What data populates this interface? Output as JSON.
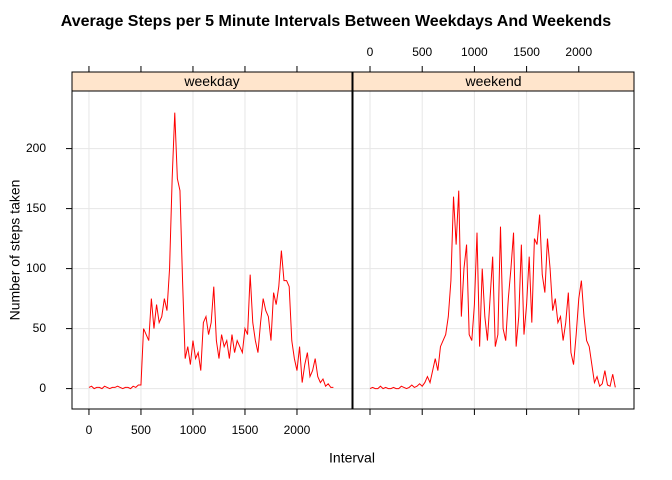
{
  "chart_data": {
    "type": "line",
    "title": "Average Steps per 5 Minute Intervals Between Weekdays And Weekends",
    "xlabel": "Interval",
    "ylabel": "Number of steps taken",
    "x": [
      0,
      25,
      50,
      75,
      100,
      125,
      150,
      175,
      200,
      225,
      250,
      275,
      300,
      325,
      350,
      375,
      400,
      425,
      450,
      475,
      500,
      525,
      550,
      575,
      600,
      625,
      650,
      675,
      700,
      725,
      750,
      775,
      800,
      825,
      850,
      875,
      900,
      925,
      950,
      975,
      1000,
      1025,
      1050,
      1075,
      1100,
      1125,
      1150,
      1175,
      1200,
      1225,
      1250,
      1275,
      1300,
      1325,
      1350,
      1375,
      1400,
      1425,
      1450,
      1475,
      1500,
      1525,
      1550,
      1575,
      1600,
      1625,
      1650,
      1675,
      1700,
      1725,
      1750,
      1775,
      1800,
      1825,
      1850,
      1875,
      1900,
      1925,
      1950,
      1975,
      2000,
      2025,
      2050,
      2075,
      2100,
      2125,
      2150,
      2175,
      2200,
      2225,
      2250,
      2275,
      2300,
      2325,
      2350
    ],
    "series": [
      {
        "name": "weekday",
        "color": "#ff0000",
        "values": [
          1,
          2,
          0,
          1,
          1,
          0,
          2,
          1,
          0,
          1,
          1,
          2,
          1,
          0,
          1,
          1,
          0,
          2,
          1,
          3,
          3,
          50,
          45,
          40,
          75,
          50,
          70,
          55,
          60,
          75,
          65,
          100,
          175,
          230,
          175,
          165,
          90,
          25,
          35,
          20,
          40,
          25,
          30,
          15,
          55,
          60,
          45,
          55,
          85,
          40,
          25,
          45,
          35,
          40,
          25,
          45,
          30,
          40,
          35,
          30,
          50,
          45,
          95,
          55,
          40,
          30,
          55,
          75,
          65,
          60,
          40,
          80,
          70,
          85,
          115,
          90,
          90,
          85,
          40,
          25,
          15,
          35,
          5,
          20,
          30,
          10,
          15,
          25,
          10,
          5,
          8,
          2,
          4,
          1,
          1
        ]
      },
      {
        "name": "weekend",
        "color": "#ff0000",
        "values": [
          0,
          1,
          0,
          0,
          2,
          0,
          1,
          0,
          0,
          1,
          0,
          0,
          2,
          1,
          0,
          1,
          3,
          1,
          2,
          4,
          2,
          5,
          10,
          5,
          15,
          25,
          15,
          35,
          40,
          45,
          60,
          90,
          160,
          120,
          165,
          60,
          100,
          120,
          45,
          40,
          70,
          130,
          35,
          100,
          60,
          40,
          75,
          110,
          35,
          45,
          135,
          50,
          40,
          75,
          100,
          130,
          35,
          60,
          120,
          45,
          70,
          110,
          55,
          125,
          120,
          145,
          95,
          80,
          125,
          100,
          65,
          75,
          55,
          60,
          40,
          55,
          80,
          30,
          20,
          45,
          75,
          90,
          60,
          40,
          35,
          20,
          5,
          10,
          2,
          4,
          15,
          3,
          2,
          12,
          1
        ]
      }
    ],
    "xlim": [
      -163,
      2529
    ],
    "xticks": [
      0,
      500,
      1000,
      1500,
      2000
    ],
    "ylim": [
      -17,
      248
    ],
    "yticks": [
      0,
      50,
      100,
      150,
      200
    ],
    "grid": true,
    "strip_color": "#ffe5cc"
  }
}
